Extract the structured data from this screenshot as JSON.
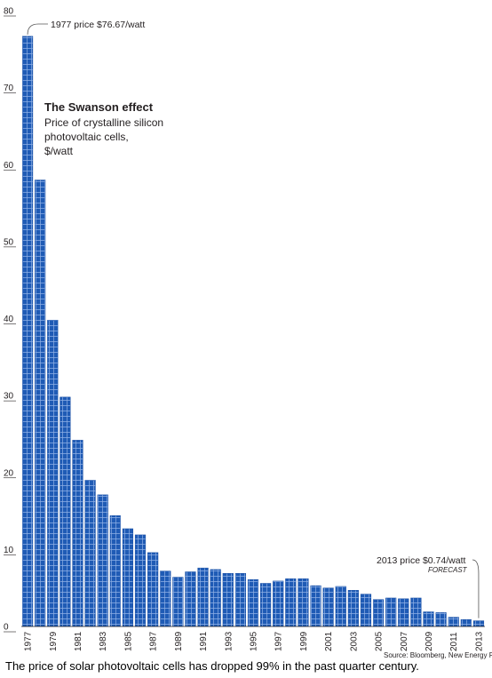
{
  "chart_data": {
    "type": "bar",
    "title": "The Swanson effect",
    "subtitle_lines": [
      "Price of crystalline silicon",
      "photovoltaic cells,",
      "$/watt"
    ],
    "categories": [
      "1977",
      "1978",
      "1979",
      "1980",
      "1981",
      "1982",
      "1983",
      "1984",
      "1985",
      "1986",
      "1987",
      "1988",
      "1989",
      "1990",
      "1991",
      "1992",
      "1993",
      "1994",
      "1995",
      "1996",
      "1997",
      "1998",
      "1999",
      "2000",
      "2001",
      "2002",
      "2003",
      "2004",
      "2005",
      "2006",
      "2007",
      "2008",
      "2009",
      "2010",
      "2011",
      "2012",
      "2013"
    ],
    "x_tick_labels": [
      "1977",
      "1979",
      "1981",
      "1983",
      "1985",
      "1987",
      "1989",
      "1991",
      "1993",
      "1995",
      "1997",
      "1999",
      "2001",
      "2003",
      "2005",
      "2007",
      "2009",
      "2011",
      "2013"
    ],
    "values": [
      76.67,
      58,
      39.8,
      29.8,
      24.2,
      19,
      17.1,
      14.4,
      12.7,
      11.9,
      9.6,
      7.2,
      6.4,
      7.1,
      7.6,
      7.4,
      6.9,
      6.9,
      6.1,
      5.6,
      5.9,
      6.2,
      6.2,
      5.3,
      5,
      5.2,
      4.7,
      4.2,
      3.5,
      3.7,
      3.6,
      3.7,
      1.9,
      1.8,
      1.2,
      0.9,
      0.74
    ],
    "yticks": [
      "0",
      "10",
      "20",
      "30",
      "40",
      "50",
      "60",
      "70",
      "80"
    ],
    "ylim": [
      0,
      80
    ],
    "xlabel": "",
    "ylabel": "",
    "grid": false,
    "bar_color": "#1f5bb5",
    "annotations": {
      "first": "1977 price $76.67/watt",
      "last": "2013 price $0.74/watt",
      "forecast": "FORECAST"
    },
    "source": "Source: Bloomberg, New Energy Finance"
  },
  "caption": "The price of solar photovoltaic cells has dropped 99% in the past quarter century."
}
